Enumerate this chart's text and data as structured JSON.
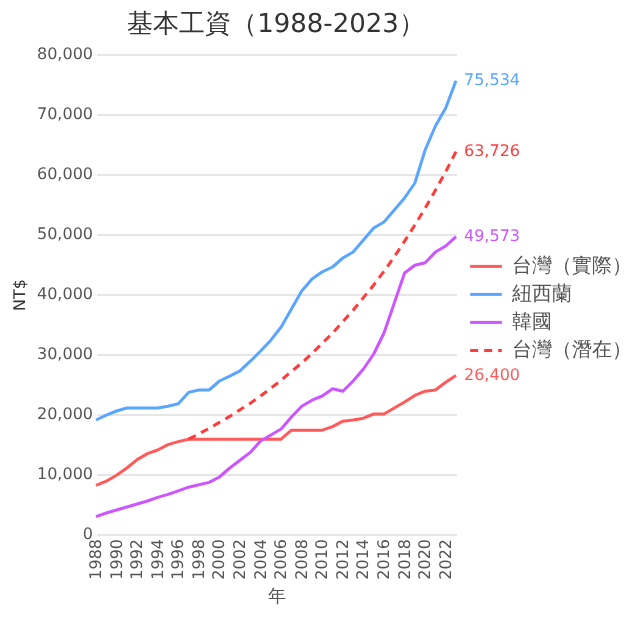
{
  "chart_data": {
    "type": "line",
    "title": "基本工資（1988-2023）",
    "xlabel": "年",
    "ylabel": "NT$",
    "x": [
      1988,
      1989,
      1990,
      1991,
      1992,
      1993,
      1994,
      1995,
      1996,
      1997,
      1998,
      1999,
      2000,
      2001,
      2002,
      2003,
      2004,
      2005,
      2006,
      2007,
      2008,
      2009,
      2010,
      2011,
      2012,
      2013,
      2014,
      2015,
      2016,
      2017,
      2018,
      2019,
      2020,
      2021,
      2022,
      2023
    ],
    "xlim": [
      1988,
      2023
    ],
    "xticks": [
      1988,
      1990,
      1992,
      1994,
      1996,
      1998,
      2000,
      2002,
      2004,
      2006,
      2008,
      2010,
      2012,
      2014,
      2016,
      2018,
      2020,
      2022
    ],
    "ylim": [
      0,
      80000
    ],
    "yticks": [
      {
        "value": 0,
        "label": "0"
      },
      {
        "value": 10000,
        "label": "10,000"
      },
      {
        "value": 20000,
        "label": "20,000"
      },
      {
        "value": 30000,
        "label": "30,000"
      },
      {
        "value": 40000,
        "label": "40,000"
      },
      {
        "value": 50000,
        "label": "50,000"
      },
      {
        "value": 60000,
        "label": "60,000"
      },
      {
        "value": 70000,
        "label": "70,000"
      },
      {
        "value": 80000,
        "label": "80,000"
      }
    ],
    "grid": "y",
    "legend": "right",
    "marker": "none",
    "series": [
      {
        "name": "台灣（實際）",
        "color": "#ff5a5a",
        "line_style": "solid",
        "values": [
          8100,
          8800,
          9800,
          11000,
          12400,
          13400,
          14000,
          14900,
          15400,
          15800,
          15800,
          15800,
          15800,
          15800,
          15800,
          15800,
          15800,
          15800,
          15800,
          17300,
          17300,
          17300,
          17300,
          17900,
          18800,
          19000,
          19300,
          20000,
          20000,
          21000,
          22000,
          23100,
          23800,
          24000,
          25300,
          26400
        ],
        "value_labels": [
          null,
          null,
          null,
          null,
          null,
          null,
          null,
          null,
          null,
          null,
          null,
          null,
          null,
          null,
          null,
          null,
          null,
          null,
          null,
          null,
          null,
          null,
          null,
          null,
          null,
          null,
          null,
          null,
          null,
          null,
          null,
          null,
          null,
          null,
          null,
          "26,400"
        ]
      },
      {
        "name": "紐西蘭",
        "color": "#5aa5ff",
        "line_style": "solid",
        "values": [
          19000,
          19800,
          20500,
          21000,
          21000,
          21000,
          21000,
          21300,
          21700,
          23600,
          24000,
          24000,
          25500,
          26300,
          27200,
          28800,
          30500,
          32300,
          34500,
          37500,
          40500,
          42500,
          43700,
          44500,
          46000,
          47000,
          49000,
          51000,
          52000,
          54000,
          56000,
          58500,
          64000,
          68000,
          71000,
          75534
        ],
        "value_labels": [
          null,
          null,
          null,
          null,
          null,
          null,
          null,
          null,
          null,
          null,
          null,
          null,
          null,
          null,
          null,
          null,
          null,
          null,
          null,
          null,
          null,
          null,
          null,
          null,
          null,
          null,
          null,
          null,
          null,
          null,
          null,
          null,
          null,
          null,
          null,
          "75,534"
        ]
      },
      {
        "name": "韓國",
        "color": "#cc55ff",
        "line_style": "solid",
        "values": [
          2900,
          3500,
          4000,
          4500,
          5000,
          5500,
          6100,
          6600,
          7200,
          7800,
          8200,
          8600,
          9500,
          11000,
          12300,
          13600,
          15500,
          16500,
          17500,
          19500,
          21300,
          22300,
          23000,
          24200,
          23800,
          25500,
          27500,
          30000,
          33500,
          38500,
          43500,
          44800,
          45200,
          47000,
          48000,
          49573
        ],
        "value_labels": [
          null,
          null,
          null,
          null,
          null,
          null,
          null,
          null,
          null,
          null,
          null,
          null,
          null,
          null,
          null,
          null,
          null,
          null,
          null,
          null,
          null,
          null,
          null,
          null,
          null,
          null,
          null,
          null,
          null,
          null,
          null,
          null,
          null,
          null,
          null,
          "49,573"
        ]
      },
      {
        "name": "台灣（潛在）",
        "color": "#ff3b3b",
        "line_style": "dashed",
        "values": [
          null,
          null,
          null,
          null,
          null,
          null,
          null,
          null,
          null,
          15800,
          16700,
          17600,
          18600,
          19600,
          20700,
          21800,
          23000,
          24300,
          25600,
          27100,
          28500,
          30100,
          31800,
          33500,
          35400,
          37300,
          39400,
          41500,
          43800,
          46200,
          48800,
          51500,
          54300,
          57300,
          60400,
          63726
        ],
        "value_labels": [
          null,
          null,
          null,
          null,
          null,
          null,
          null,
          null,
          null,
          null,
          null,
          null,
          null,
          null,
          null,
          null,
          null,
          null,
          null,
          null,
          null,
          null,
          null,
          null,
          null,
          null,
          null,
          null,
          null,
          null,
          null,
          null,
          null,
          null,
          null,
          "63,726"
        ]
      }
    ]
  }
}
